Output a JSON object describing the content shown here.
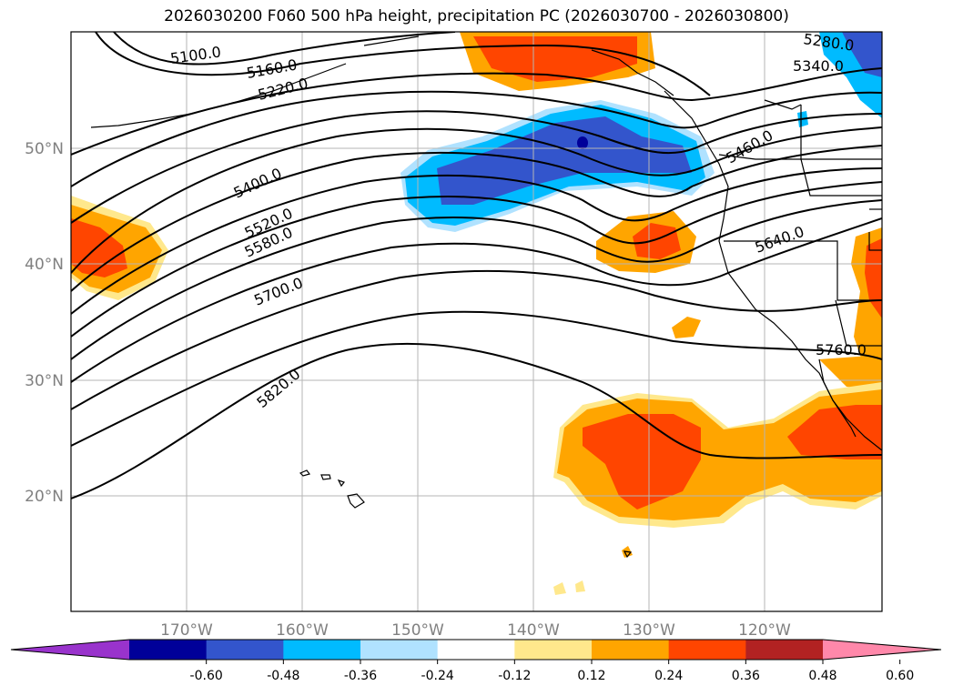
{
  "title": "2026030200 F060 500 hPa height, precipitation PC (2026030700 - 2026030800)",
  "latitude_labels": [
    "50°N",
    "40°N",
    "30°N",
    "20°N"
  ],
  "longitude_labels": [
    "170°W",
    "160°W",
    "150°W",
    "140°W",
    "130°W",
    "120°W"
  ],
  "contour_labels": [
    "5100.0",
    "5160.0",
    "5220.0",
    "5280.0",
    "5340.0",
    "5400.0",
    "5460.0",
    "5520.0",
    "5580.0",
    "5640.0",
    "5700.0",
    "5760.0",
    "5820.0"
  ],
  "colorbar": {
    "tick_labels": [
      "-0.60",
      "-0.48",
      "-0.36",
      "-0.24",
      "-0.12",
      "0.12",
      "0.24",
      "0.36",
      "0.48",
      "0.60"
    ],
    "colors": [
      "#9933cc",
      "#000099",
      "#3355cc",
      "#00bbff",
      "#b0e2ff",
      "#ffffff",
      "#ffe88c",
      "#ffa500",
      "#ff4500",
      "#b22222",
      "#ff88aa"
    ]
  }
}
